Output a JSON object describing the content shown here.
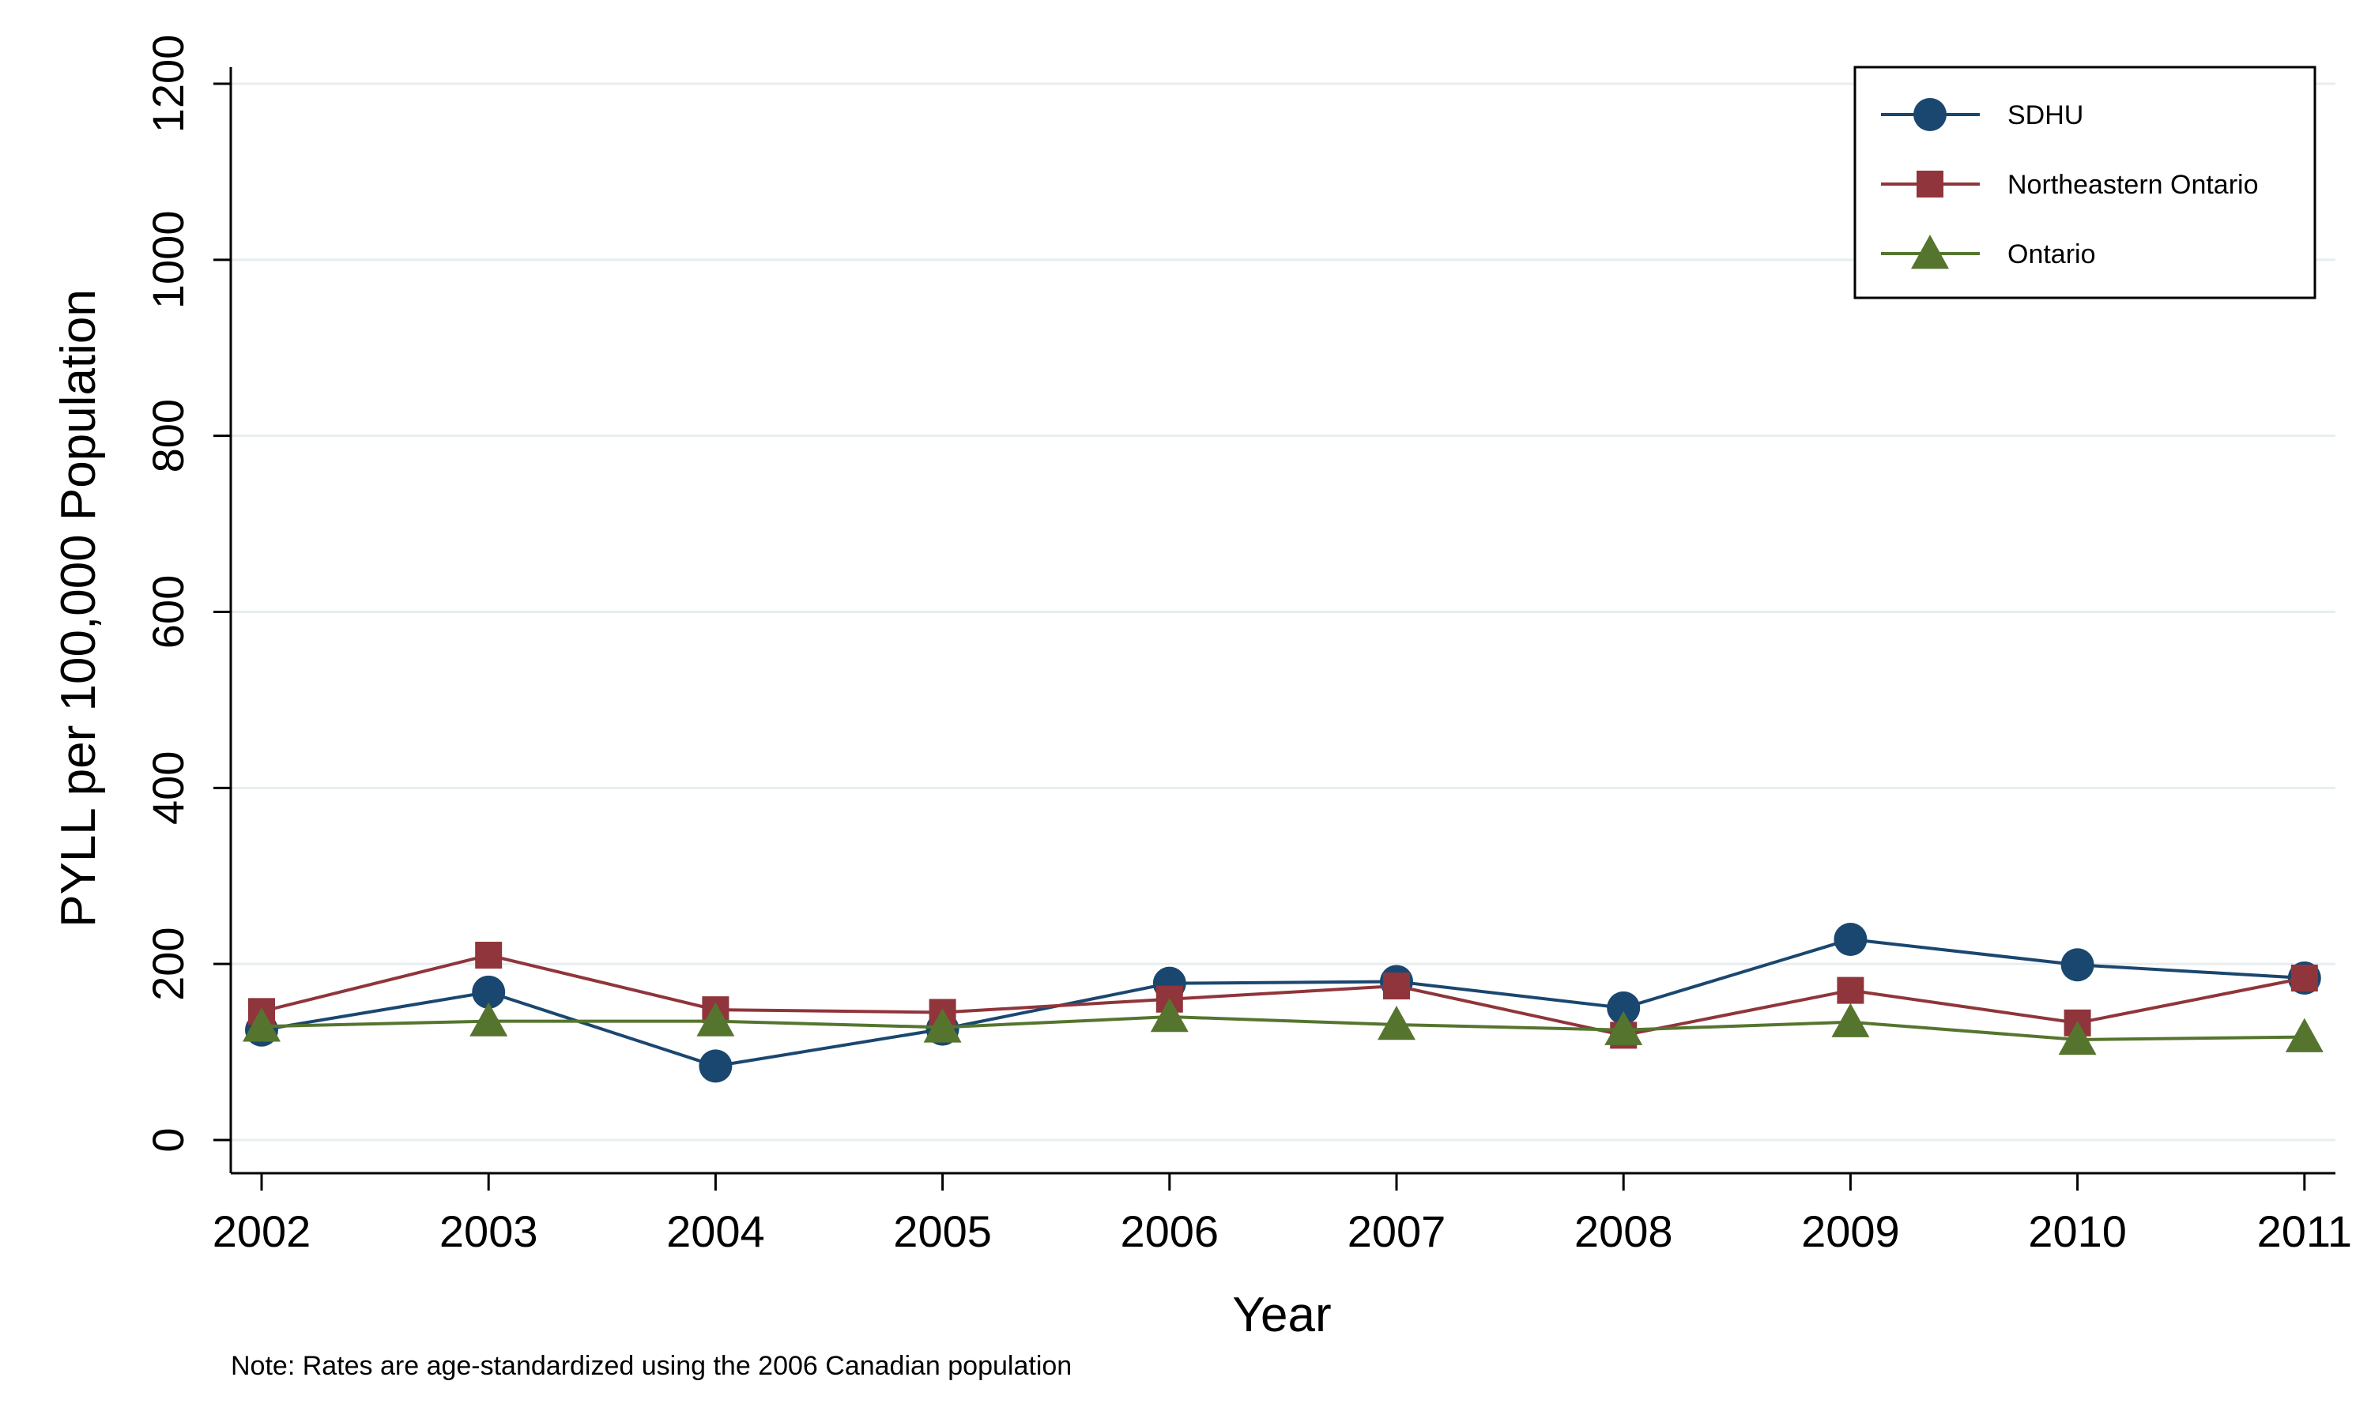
{
  "chart_data": {
    "type": "line",
    "xlabel": "Year",
    "ylabel": "PYLL per 100,000 Population",
    "note": "Note: Rates are age-standardized using the 2006 Canadian population",
    "x": [
      "2002",
      "2003",
      "2004",
      "2005",
      "2006",
      "2007",
      "2008",
      "2009",
      "2010",
      "2011"
    ],
    "ylim": [
      0,
      1200
    ],
    "yticks": [
      "0",
      "200",
      "400",
      "600",
      "800",
      "1000",
      "1200"
    ],
    "grid": true,
    "legend_position": "top-right",
    "series": [
      {
        "name": "SDHU",
        "marker": "circle",
        "color": "#1a476f",
        "values": [
          125,
          168,
          84,
          126,
          178,
          180,
          150,
          228,
          199,
          184
        ]
      },
      {
        "name": "Northeastern Ontario",
        "marker": "square",
        "color": "#90353b",
        "values": [
          146,
          210,
          148,
          145,
          160,
          175,
          119,
          170,
          133,
          184
        ]
      },
      {
        "name": "Ontario",
        "marker": "triangle",
        "color": "#55752f",
        "values": [
          129,
          135,
          135,
          128,
          140,
          131,
          125,
          134,
          114,
          117
        ]
      }
    ]
  }
}
